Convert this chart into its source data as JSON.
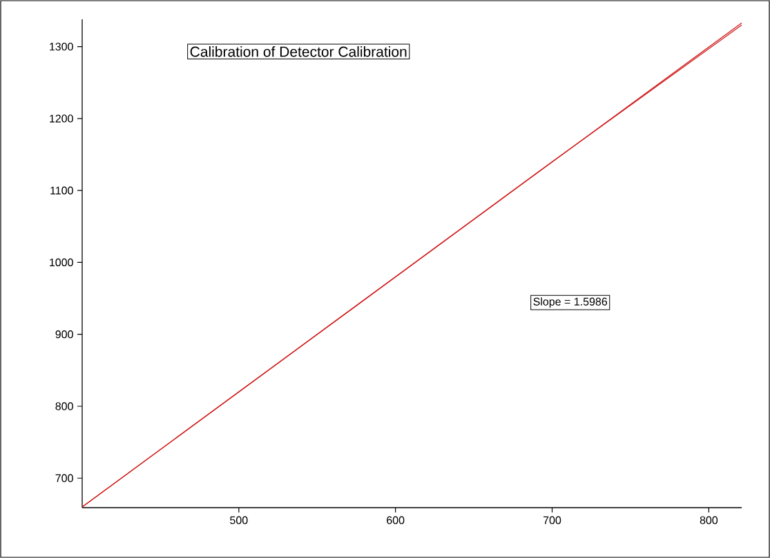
{
  "chart_data": {
    "type": "line",
    "title": "Calibration of Detector Calibration",
    "annotations": [
      "Slope = 1.5986"
    ],
    "series": [
      {
        "color": "#d01c1c",
        "x": [
          400,
          500,
          600,
          700,
          821
        ],
        "values": [
          660,
          820,
          980,
          1140,
          1330
        ]
      },
      {
        "color": "#d01c1c",
        "x": [
          400,
          821
        ],
        "values": [
          660,
          1333
        ]
      }
    ],
    "xlim": [
      400,
      821
    ],
    "ylim": [
      659,
      1338
    ],
    "xticks": [
      500,
      600,
      700,
      800
    ],
    "yticks": [
      700,
      800,
      900,
      1000,
      1100,
      1200,
      1300
    ],
    "marker": "none",
    "line_style": "solid"
  }
}
